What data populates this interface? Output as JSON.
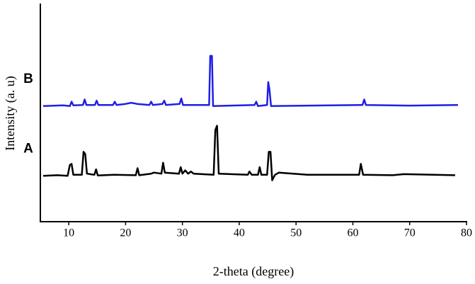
{
  "chart_data": {
    "type": "line",
    "x_label": "2-theta (degree)",
    "y_label": "Intensity (a. u)",
    "xlim": [
      5,
      80
    ],
    "xticks": [
      10,
      20,
      30,
      40,
      50,
      60,
      70,
      80
    ],
    "ylim": [
      0,
      100
    ],
    "series": [
      {
        "name": "A",
        "color": "#000000",
        "x": [
          5.5,
          8,
          9.8,
          10.2,
          10.5,
          10.8,
          12.3,
          12.6,
          12.9,
          13.2,
          14.5,
          14.8,
          15.1,
          18,
          21.8,
          22.1,
          22.4,
          24.5,
          25,
          26.3,
          26.6,
          26.9,
          29.4,
          29.7,
          30,
          30.5,
          31,
          31.5,
          32,
          35.5,
          35.8,
          36.1,
          36.4,
          41.5,
          41.8,
          42.2,
          43.3,
          43.6,
          43.9,
          44.9,
          45.2,
          45.5,
          45.8,
          46.3,
          47,
          52,
          61.1,
          61.4,
          61.8,
          67,
          69,
          78
        ],
        "values": [
          21,
          21.3,
          21,
          26,
          26.5,
          21.5,
          21.5,
          32,
          31,
          22,
          21.5,
          24,
          21.2,
          21.5,
          21.3,
          24.5,
          21.3,
          22,
          22.5,
          22,
          27,
          22.5,
          22,
          25,
          22,
          23.5,
          22,
          23,
          22,
          21.5,
          42,
          44,
          22,
          21.5,
          23,
          21.5,
          21.5,
          25,
          21.5,
          21.5,
          32,
          32,
          19,
          21.5,
          22.5,
          21.5,
          21.5,
          26.5,
          21.5,
          21.3,
          21.8,
          21.3
        ]
      },
      {
        "name": "B",
        "color": "#1f1fe6",
        "x": [
          5.5,
          9,
          10.2,
          10.5,
          10.8,
          12.5,
          12.8,
          13.1,
          14.6,
          14.9,
          15.2,
          17.8,
          18.1,
          18.4,
          20,
          21,
          22,
          24.2,
          24.5,
          24.8,
          26.5,
          26.8,
          27.1,
          29.5,
          29.8,
          30.1,
          34.7,
          34.9,
          35.2,
          35.4,
          42.7,
          43,
          43.3,
          44.9,
          45.1,
          45.3,
          45.6,
          61.7,
          62,
          62.3,
          70,
          78.5
        ],
        "values": [
          53,
          53.3,
          53,
          55,
          53.3,
          53.5,
          56,
          53.5,
          53.5,
          55.5,
          53.5,
          53.5,
          55,
          53.5,
          54,
          54.5,
          54,
          53.5,
          55,
          53.5,
          54,
          55.5,
          53.5,
          54,
          56.5,
          53.5,
          53.5,
          76,
          76,
          53,
          53.5,
          55,
          53,
          53.5,
          64,
          61,
          53,
          53.5,
          56,
          53.5,
          53.2,
          53.5
        ]
      }
    ]
  }
}
